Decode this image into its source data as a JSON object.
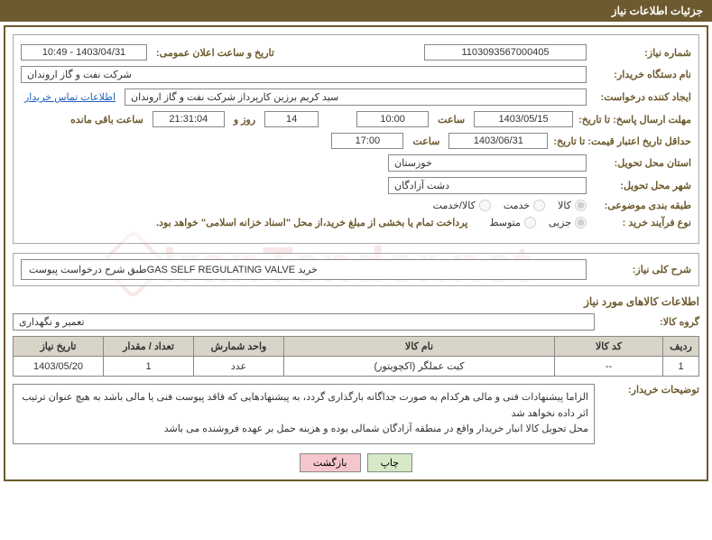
{
  "header": {
    "title": "جزئیات اطلاعات نیاز"
  },
  "fields": {
    "need_no_label": "شماره نیاز:",
    "need_no": "1103093567000405",
    "announce_label": "تاریخ و ساعت اعلان عمومی:",
    "announce_value": "1403/04/31 - 10:49",
    "buyer_org_label": "نام دستگاه خریدار:",
    "buyer_org": "شرکت نفت و گاز اروندان",
    "requester_label": "ایجاد کننده درخواست:",
    "requester": "سید کریم برزین کارپرداز شرکت نفت و گاز اروندان",
    "buyer_contact_link": "اطلاعات تماس خریدار",
    "deadline_label": "مهلت ارسال پاسخ: تا تاریخ:",
    "deadline_date": "1403/05/15",
    "time_word": "ساعت",
    "deadline_time": "10:00",
    "days_value": "14",
    "days_and": "روز و",
    "countdown": "21:31:04",
    "remaining": "ساعت باقی مانده",
    "validity_label": "حداقل تاریخ اعتبار قیمت: تا تاریخ:",
    "validity_date": "1403/06/31",
    "validity_time": "17:00",
    "province_label": "استان محل تحویل:",
    "province": "خوزستان",
    "city_label": "شهر محل تحویل:",
    "city": "دشت آزادگان",
    "category_label": "طبقه بندی موضوعی:",
    "category_opts": [
      "کالا",
      "خدمت",
      "کالا/خدمت"
    ],
    "process_label": "نوع فرآیند خرید :",
    "process_opts": [
      "جزیی",
      "متوسط"
    ],
    "process_note": "پرداخت تمام یا بخشی از مبلغ خرید،از محل \"اسناد خزانه اسلامی\" خواهد بود.",
    "general_desc_label": "شرح کلی نیاز:",
    "general_desc": "خرید GAS SELF REGULATING VALVEطبق شرح درخواست پیوست",
    "goods_info_title": "اطلاعات کالاهای مورد نیاز",
    "goods_group_label": "گروه کالا:",
    "goods_group": "تعمیر و نگهداری",
    "buyer_notes_label": "توضیحات خریدار:",
    "buyer_notes_l1": "الزاما پیشنهادات فنی و مالی هرکدام به صورت جداگانه بارگذاری گردد، به پیشنهادهایی که فاقد پیوست فنی یا مالی باشد به هیچ عنوان ترتیب اثر داده نخواهد شد",
    "buyer_notes_l2": "محل تحویل کالا انبار خریدار واقع در منطقه آزادگان شمالی بوده و هزینه حمل بر عهده فروشنده می باشد"
  },
  "table": {
    "headers": [
      "ردیف",
      "کد کالا",
      "نام کالا",
      "واحد شمارش",
      "تعداد / مقدار",
      "تاریخ نیاز"
    ],
    "rows": [
      [
        "1",
        "--",
        "کیت عملگر (اکچویتور)",
        "عدد",
        "1",
        "1403/05/20"
      ]
    ]
  },
  "buttons": {
    "print": "چاپ",
    "back": "بازگشت"
  },
  "watermark": "IranTender.net"
}
